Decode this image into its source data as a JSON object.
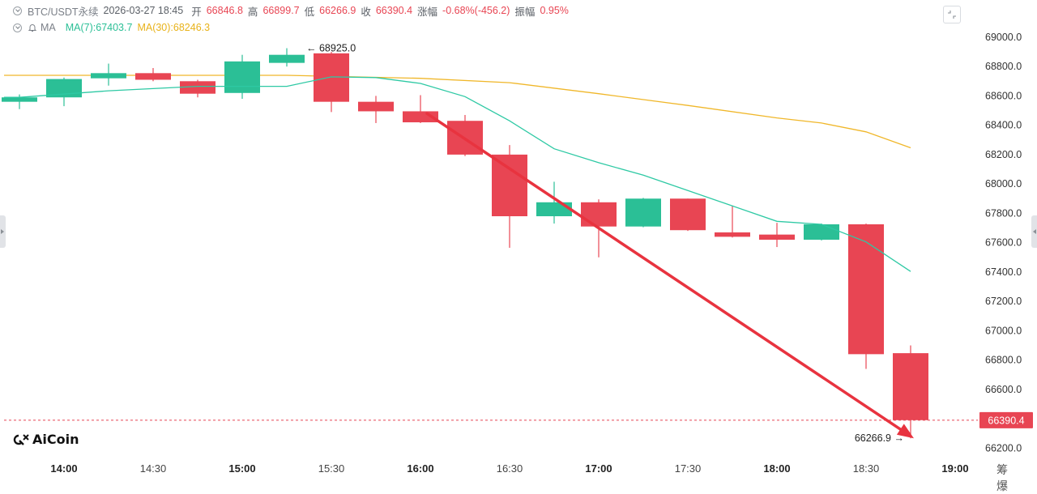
{
  "header": {
    "symbol": "BTC/USDT永续",
    "datetime": "2026-03-27 18:45",
    "open_label": "开",
    "open": "66846.8",
    "high_label": "高",
    "high": "66899.7",
    "low_label": "低",
    "low": "66266.9",
    "close_label": "收",
    "close": "66390.4",
    "change_label": "涨幅",
    "change": "-0.68%(-456.2)",
    "amplitude_label": "振幅",
    "amplitude": "0.95%"
  },
  "indicator": {
    "name": "MA",
    "ma7_label": "MA(7):67403.7",
    "ma30_label": "MA(30):68246.3"
  },
  "logo_text": "AiCoin",
  "corner_labels": "筹 爆",
  "colors": {
    "up": "#2bbf96",
    "down": "#e84553",
    "ma7": "#2ec9a4",
    "ma30": "#f0b72a",
    "arrow": "#e8333f",
    "axis_text": "#333333"
  },
  "chart_data": {
    "type": "candlestick",
    "interval_minutes": 15,
    "y_ticks": [
      66200,
      66400,
      66600,
      66800,
      67000,
      67200,
      67400,
      67600,
      67800,
      68000,
      68200,
      68400,
      68600,
      68800,
      69000
    ],
    "y_tick_labels": [
      "66200.0",
      "66400.0",
      "66600.0",
      "66800.0",
      "67000.0",
      "67200.0",
      "67400.0",
      "67600.0",
      "67800.0",
      "68000.0",
      "68200.0",
      "68400.0",
      "68600.0",
      "68800.0",
      "69000.0"
    ],
    "ylim": [
      66130,
      69110
    ],
    "x_ticks": [
      {
        "time": "14:00",
        "bold": true
      },
      {
        "time": "14:30",
        "bold": false
      },
      {
        "time": "15:00",
        "bold": true
      },
      {
        "time": "15:30",
        "bold": false
      },
      {
        "time": "16:00",
        "bold": true
      },
      {
        "time": "16:30",
        "bold": false
      },
      {
        "time": "17:00",
        "bold": true
      },
      {
        "time": "17:30",
        "bold": false
      },
      {
        "time": "18:00",
        "bold": true
      },
      {
        "time": "18:30",
        "bold": false
      },
      {
        "time": "19:00",
        "bold": true
      }
    ],
    "candles": [
      {
        "time": "13:45",
        "open": 68560,
        "high": 68610,
        "low": 68510,
        "close": 68590
      },
      {
        "time": "14:00",
        "open": 68590,
        "high": 68725,
        "low": 68530,
        "close": 68715
      },
      {
        "time": "14:15",
        "open": 68720,
        "high": 68820,
        "low": 68670,
        "close": 68755
      },
      {
        "time": "14:30",
        "open": 68755,
        "high": 68790,
        "low": 68700,
        "close": 68710
      },
      {
        "time": "14:45",
        "open": 68700,
        "high": 68710,
        "low": 68590,
        "close": 68615
      },
      {
        "time": "15:00",
        "open": 68620,
        "high": 68880,
        "low": 68580,
        "close": 68835
      },
      {
        "time": "15:15",
        "open": 68825,
        "high": 68925,
        "low": 68800,
        "close": 68880
      },
      {
        "time": "15:30",
        "open": 68890,
        "high": 68900,
        "low": 68490,
        "close": 68560
      },
      {
        "time": "15:45",
        "open": 68560,
        "high": 68600,
        "low": 68415,
        "close": 68495
      },
      {
        "time": "16:00",
        "open": 68495,
        "high": 68605,
        "low": 68415,
        "close": 68420
      },
      {
        "time": "16:15",
        "open": 68430,
        "high": 68470,
        "low": 68190,
        "close": 68200
      },
      {
        "time": "16:30",
        "open": 68200,
        "high": 68265,
        "low": 67565,
        "close": 67780
      },
      {
        "time": "16:45",
        "open": 67780,
        "high": 68015,
        "low": 67730,
        "close": 67875
      },
      {
        "time": "17:00",
        "open": 67875,
        "high": 67895,
        "low": 67500,
        "close": 67710
      },
      {
        "time": "17:15",
        "open": 67710,
        "high": 67905,
        "low": 67705,
        "close": 67900
      },
      {
        "time": "17:30",
        "open": 67900,
        "high": 67900,
        "low": 67680,
        "close": 67685
      },
      {
        "time": "17:45",
        "open": 67670,
        "high": 67850,
        "low": 67635,
        "close": 67640
      },
      {
        "time": "18:00",
        "open": 67655,
        "high": 67735,
        "low": 67570,
        "close": 67620
      },
      {
        "time": "18:15",
        "open": 67620,
        "high": 67730,
        "low": 67615,
        "close": 67725
      },
      {
        "time": "18:30",
        "open": 67725,
        "high": 67730,
        "low": 66740,
        "close": 66840
      },
      {
        "time": "18:45",
        "open": 66846.8,
        "high": 66899.7,
        "low": 66266.9,
        "close": 66390.4
      }
    ],
    "ma7": [
      {
        "time": "13:45",
        "value": 68590
      },
      {
        "time": "14:15",
        "value": 68635
      },
      {
        "time": "14:45",
        "value": 68665
      },
      {
        "time": "15:15",
        "value": 68665
      },
      {
        "time": "15:30",
        "value": 68730
      },
      {
        "time": "15:45",
        "value": 68725
      },
      {
        "time": "16:00",
        "value": 68685
      },
      {
        "time": "16:15",
        "value": 68595
      },
      {
        "time": "16:30",
        "value": 68430
      },
      {
        "time": "16:45",
        "value": 68240
      },
      {
        "time": "17:00",
        "value": 68145
      },
      {
        "time": "17:15",
        "value": 68060
      },
      {
        "time": "17:30",
        "value": 67955
      },
      {
        "time": "17:45",
        "value": 67850
      },
      {
        "time": "18:00",
        "value": 67745
      },
      {
        "time": "18:15",
        "value": 67725
      },
      {
        "time": "18:30",
        "value": 67605
      },
      {
        "time": "18:45",
        "value": 67403.7
      }
    ],
    "ma30": [
      {
        "time": "13:45",
        "value": 68740
      },
      {
        "time": "15:15",
        "value": 68740
      },
      {
        "time": "16:00",
        "value": 68720
      },
      {
        "time": "16:30",
        "value": 68690
      },
      {
        "time": "17:00",
        "value": 68615
      },
      {
        "time": "17:30",
        "value": 68535
      },
      {
        "time": "18:00",
        "value": 68450
      },
      {
        "time": "18:15",
        "value": 68415
      },
      {
        "time": "18:30",
        "value": 68355
      },
      {
        "time": "18:45",
        "value": 68246.3
      }
    ],
    "annotations": {
      "high_marker": {
        "time": "15:15",
        "value": 68925,
        "label": "68925.0"
      },
      "low_marker": {
        "time": "18:45",
        "value": 66266.9,
        "label": "66266.9"
      },
      "current_price": {
        "value": 66390.4,
        "label": "66390.4"
      },
      "trend_arrow": {
        "start": {
          "time": "16:00",
          "value": 68480
        },
        "end": {
          "time": "18:45",
          "value": 66266.9
        }
      }
    }
  }
}
